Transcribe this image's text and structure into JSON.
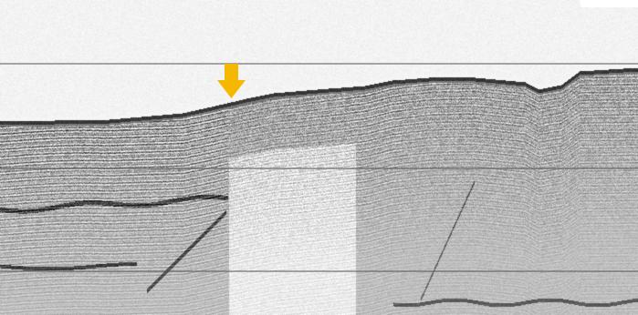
{
  "image": {
    "type": "seismic-reflection-profile",
    "colormap": "grayscale",
    "background_color": "#ffffff"
  },
  "annotations": {
    "marker": {
      "icon": "down-arrow-icon",
      "color": "#f5b800"
    },
    "reference_lines": {
      "count": 3,
      "color": "#555555"
    }
  }
}
